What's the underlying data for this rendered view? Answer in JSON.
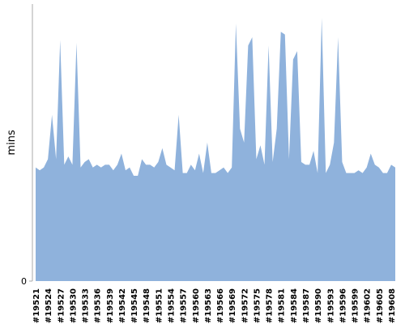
{
  "chart_data": {
    "type": "area",
    "y_label": "mins",
    "color": "#8fb2dc",
    "ylim": [
      0,
      100
    ],
    "yticks": [
      0
    ],
    "categories": [
      "#19521",
      null,
      null,
      "#19524",
      null,
      null,
      "#19527",
      null,
      null,
      "#19530",
      null,
      null,
      "#19533",
      null,
      null,
      "#19536",
      null,
      null,
      "#19539",
      null,
      null,
      "#19542",
      null,
      null,
      "#19545",
      null,
      null,
      "#19548",
      null,
      null,
      "#19551",
      null,
      null,
      "#19554",
      null,
      null,
      "#19557",
      null,
      null,
      "#19560",
      null,
      null,
      "#19563",
      null,
      null,
      "#19566",
      null,
      null,
      "#19569",
      null,
      null,
      "#19572",
      null,
      null,
      "#19575",
      null,
      null,
      "#19578",
      null,
      null,
      "#19581",
      null,
      null,
      "#19584",
      null,
      null,
      "#19587",
      null,
      null,
      "#19590",
      null,
      null,
      "#19593",
      null,
      null,
      "#19596",
      null,
      null,
      "#19599",
      null,
      null,
      "#19602",
      null,
      null,
      "#19605",
      null,
      null,
      "#19608",
      null
    ],
    "values": [
      41,
      40,
      41,
      44,
      60,
      44,
      87,
      42,
      45,
      42,
      86,
      41,
      43,
      44,
      41,
      42,
      41,
      42,
      42,
      40,
      42,
      46,
      40,
      41,
      38,
      38,
      44,
      42,
      42,
      41,
      43,
      48,
      42,
      41,
      40,
      60,
      39,
      39,
      42,
      40,
      46,
      39,
      50,
      39,
      39,
      40,
      41,
      39,
      41,
      93,
      55,
      50,
      85,
      88,
      44,
      49,
      42,
      85,
      43,
      55,
      90,
      89,
      44,
      80,
      83,
      43,
      42,
      42,
      47,
      39,
      95,
      39,
      42,
      50,
      88,
      43,
      39,
      39,
      39,
      40,
      39,
      41,
      46,
      42,
      41,
      39,
      39,
      42,
      41
    ]
  }
}
